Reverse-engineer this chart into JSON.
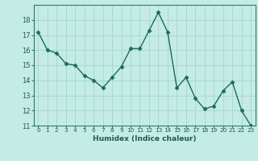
{
  "x": [
    0,
    1,
    2,
    3,
    4,
    5,
    6,
    7,
    8,
    9,
    10,
    11,
    12,
    13,
    14,
    15,
    16,
    17,
    18,
    19,
    20,
    21,
    22,
    23
  ],
  "y": [
    17.2,
    16.0,
    15.8,
    15.1,
    15.0,
    14.3,
    14.0,
    13.5,
    14.2,
    14.9,
    16.1,
    16.1,
    17.3,
    18.5,
    17.2,
    13.5,
    14.2,
    12.8,
    12.1,
    12.3,
    13.3,
    13.9,
    12.0,
    11.0
  ],
  "xlabel": "Humidex (Indice chaleur)",
  "ylim": [
    11,
    19
  ],
  "xlim": [
    -0.5,
    23.5
  ],
  "yticks": [
    11,
    12,
    13,
    14,
    15,
    16,
    17,
    18
  ],
  "line_color": "#1a6b5a",
  "marker": "D",
  "marker_size": 2.5,
  "bg_color": "#c5ebe6",
  "grid_color": "#a8d8d2",
  "spine_color": "#2d7a6a",
  "tick_color": "#1a5c50",
  "xlabel_color": "#1a5c50"
}
